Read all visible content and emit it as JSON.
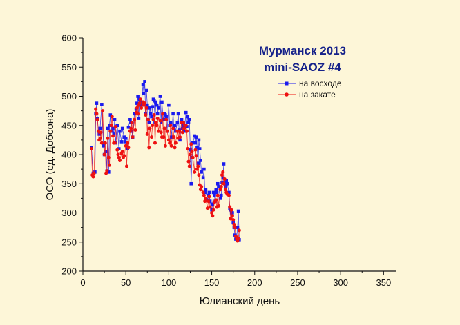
{
  "chart_data": {
    "type": "scatter",
    "title": [
      "Мурманск 2013",
      "mini-SAOZ #4"
    ],
    "xlabel": "Юлианский день",
    "ylabel": "ОСО (ед. Добсона)",
    "xlim": [
      0,
      365
    ],
    "ylim": [
      200,
      600
    ],
    "xticks": [
      0,
      50,
      100,
      150,
      200,
      250,
      300,
      350
    ],
    "yticks": [
      200,
      250,
      300,
      350,
      400,
      450,
      500,
      550,
      600
    ],
    "xtick_labels": [
      "0",
      "50",
      "100",
      "150",
      "200",
      "250",
      "300",
      "350"
    ],
    "ytick_labels": [
      "200",
      "250",
      "300",
      "350",
      "400",
      "450",
      "500",
      "550",
      "600"
    ],
    "grid": false,
    "legend_position": "top-right",
    "series": [
      {
        "name": "на восходе",
        "color": "#1a1aee",
        "marker": "square",
        "x": [
          10,
          12,
          14,
          15,
          16,
          17,
          18,
          19,
          20,
          22,
          24,
          25,
          27,
          28,
          29,
          30,
          31,
          32,
          33,
          35,
          36,
          37,
          38,
          40,
          42,
          43,
          45,
          46,
          48,
          49,
          50,
          52,
          53,
          55,
          56,
          57,
          58,
          60,
          62,
          63,
          64,
          65,
          66,
          67,
          68,
          70,
          71,
          72,
          73,
          74,
          75,
          76,
          77,
          78,
          79,
          80,
          81,
          82,
          83,
          84,
          85,
          86,
          87,
          88,
          90,
          91,
          92,
          93,
          94,
          95,
          96,
          97,
          98,
          100,
          101,
          102,
          103,
          105,
          106,
          107,
          108,
          110,
          111,
          112,
          113,
          115,
          116,
          117,
          118,
          120,
          121,
          122,
          123,
          124,
          125,
          126,
          127,
          128,
          130,
          131,
          132,
          133,
          134,
          135,
          136,
          137,
          138,
          140,
          141,
          142,
          143,
          145,
          146,
          147,
          148,
          150,
          151,
          152,
          153,
          154,
          155,
          156,
          157,
          158,
          160,
          161,
          162,
          163,
          164,
          165,
          166,
          167,
          168,
          170,
          171,
          172,
          173,
          174,
          175,
          176,
          177,
          178,
          179,
          180,
          181,
          182
        ],
        "y": [
          412,
          368,
          370,
          470,
          488,
          462,
          440,
          435,
          445,
          486,
          415,
          400,
          405,
          372,
          445,
          370,
          450,
          468,
          440,
          445,
          435,
          460,
          420,
          450,
          410,
          440,
          422,
          445,
          430,
          422,
          428,
          410,
          447,
          460,
          455,
          440,
          430,
          470,
          478,
          488,
          500,
          462,
          495,
          490,
          485,
          520,
          505,
          525,
          470,
          510,
          485,
          460,
          455,
          480,
          470,
          465,
          482,
          495,
          492,
          455,
          490,
          485,
          470,
          480,
          500,
          455,
          490,
          470,
          460,
          470,
          468,
          465,
          440,
          485,
          450,
          455,
          430,
          470,
          445,
          450,
          440,
          455,
          470,
          442,
          425,
          460,
          445,
          450,
          440,
          472,
          448,
          465,
          455,
          460,
          408,
          350,
          395,
          420,
          432,
          420,
          430,
          412,
          385,
          425,
          410,
          390,
          370,
          360,
          375,
          335,
          340,
          322,
          330,
          335,
          320,
          305,
          315,
          335,
          330,
          320,
          340,
          335,
          350,
          345,
          325,
          330,
          352,
          360,
          384,
          350,
          345,
          355,
          350,
          335,
          308,
          305,
          300,
          300,
          283,
          275,
          262,
          255,
          258,
          275,
          303,
          254
        ]
      },
      {
        "name": "на закате",
        "color": "#ee1111",
        "marker": "circle",
        "x": [
          10,
          11,
          12,
          13,
          15,
          16,
          17,
          18,
          19,
          20,
          21,
          22,
          23,
          25,
          26,
          27,
          28,
          29,
          30,
          31,
          32,
          33,
          34,
          35,
          36,
          37,
          38,
          40,
          41,
          42,
          43,
          45,
          46,
          47,
          48,
          50,
          51,
          52,
          53,
          55,
          56,
          57,
          58,
          60,
          61,
          62,
          63,
          64,
          65,
          66,
          67,
          68,
          70,
          71,
          72,
          73,
          74,
          75,
          76,
          77,
          78,
          80,
          81,
          82,
          83,
          84,
          85,
          86,
          87,
          88,
          90,
          91,
          92,
          93,
          94,
          95,
          96,
          97,
          98,
          100,
          101,
          102,
          103,
          105,
          106,
          107,
          108,
          110,
          111,
          112,
          113,
          115,
          116,
          117,
          118,
          120,
          121,
          122,
          123,
          124,
          125,
          126,
          127,
          128,
          130,
          131,
          132,
          133,
          134,
          135,
          136,
          137,
          138,
          140,
          141,
          142,
          143,
          145,
          146,
          147,
          148,
          150,
          151,
          152,
          153,
          154,
          155,
          156,
          157,
          158,
          160,
          161,
          162,
          163,
          164,
          165,
          166,
          167,
          168,
          170,
          171,
          172,
          173,
          174,
          175,
          176,
          177,
          178,
          179,
          180,
          181,
          182
        ],
        "y": [
          410,
          365,
          362,
          368,
          478,
          470,
          460,
          440,
          425,
          428,
          438,
          420,
          475,
          400,
          420,
          368,
          372,
          428,
          395,
          382,
          440,
          450,
          465,
          432,
          420,
          420,
          448,
          408,
          400,
          395,
          390,
          402,
          405,
          395,
          398,
          415,
          380,
          420,
          412,
          440,
          445,
          455,
          430,
          460,
          442,
          472,
          480,
          470,
          485,
          488,
          495,
          480,
          490,
          485,
          488,
          468,
          480,
          435,
          460,
          412,
          445,
          430,
          450,
          460,
          468,
          420,
          455,
          450,
          462,
          440,
          458,
          438,
          430,
          470,
          430,
          445,
          415,
          460,
          440,
          425,
          420,
          450,
          415,
          445,
          430,
          412,
          420,
          440,
          428,
          440,
          430,
          455,
          438,
          455,
          445,
          450,
          440,
          410,
          388,
          380,
          400,
          418,
          405,
          395,
          370,
          408,
          398,
          375,
          380,
          365,
          348,
          340,
          345,
          335,
          330,
          320,
          325,
          308,
          320,
          328,
          310,
          300,
          295,
          305,
          318,
          320,
          322,
          310,
          330,
          312,
          340,
          345,
          365,
          370,
          350,
          358,
          340,
          335,
          332,
          330,
          310,
          290,
          305,
          295,
          288,
          280,
          275,
          260,
          255,
          252,
          256,
          270
        ]
      }
    ]
  }
}
